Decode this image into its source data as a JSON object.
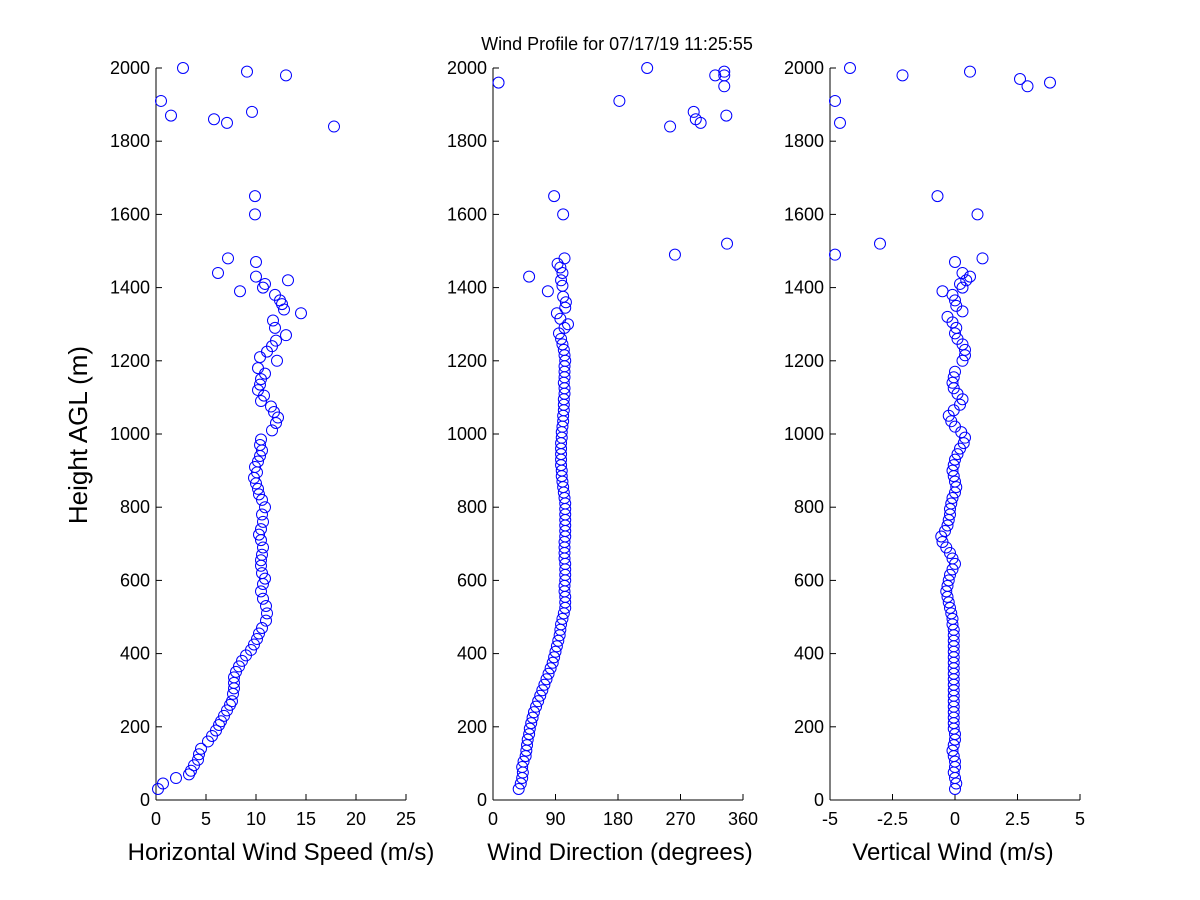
{
  "title": "Wind Profile for  07/17/19 11:25:55",
  "ylabel": "Height AGL (m)",
  "colors": {
    "marker": "#0000ff",
    "axis": "#000000",
    "background": "#ffffff"
  },
  "chart_data": [
    {
      "type": "scatter",
      "xlabel": "Horizontal Wind Speed (m/s)",
      "ylabel": "Height AGL (m)",
      "xlim": [
        0,
        25
      ],
      "ylim": [
        0,
        2000
      ],
      "xticks": [
        0,
        5,
        10,
        15,
        20,
        25
      ],
      "xtick_labels": [
        "0",
        "5",
        "10",
        "15",
        "20",
        "25"
      ],
      "yticks": [
        0,
        200,
        400,
        600,
        800,
        1000,
        1200,
        1400,
        1600,
        1800,
        2000
      ],
      "ytick_labels": [
        "0",
        "200",
        "400",
        "600",
        "800",
        "1000",
        "1200",
        "1400",
        "1600",
        "1800",
        "2000"
      ],
      "grid": false,
      "points": [
        [
          0.2,
          30
        ],
        [
          0.7,
          45
        ],
        [
          2,
          60
        ],
        [
          3.3,
          70
        ],
        [
          3.5,
          80
        ],
        [
          3.8,
          95
        ],
        [
          4.2,
          110
        ],
        [
          4.3,
          125
        ],
        [
          4.5,
          140
        ],
        [
          5.2,
          160
        ],
        [
          5.6,
          175
        ],
        [
          6,
          190
        ],
        [
          6.3,
          205
        ],
        [
          6.5,
          215
        ],
        [
          6.8,
          230
        ],
        [
          7.1,
          245
        ],
        [
          7.4,
          260
        ],
        [
          7.6,
          270
        ],
        [
          7.7,
          290
        ],
        [
          7.8,
          305
        ],
        [
          7.8,
          320
        ],
        [
          7.8,
          335
        ],
        [
          8.0,
          350
        ],
        [
          8.3,
          365
        ],
        [
          8.6,
          380
        ],
        [
          9.0,
          395
        ],
        [
          9.5,
          410
        ],
        [
          9.8,
          425
        ],
        [
          10.1,
          440
        ],
        [
          10.3,
          455
        ],
        [
          10.6,
          470
        ],
        [
          11.0,
          490
        ],
        [
          11.1,
          510
        ],
        [
          11.0,
          530
        ],
        [
          10.7,
          550
        ],
        [
          10.5,
          570
        ],
        [
          10.7,
          590
        ],
        [
          10.9,
          605
        ],
        [
          10.6,
          620
        ],
        [
          10.5,
          640
        ],
        [
          10.5,
          655
        ],
        [
          10.6,
          670
        ],
        [
          10.7,
          690
        ],
        [
          10.5,
          710
        ],
        [
          10.3,
          725
        ],
        [
          10.5,
          740
        ],
        [
          10.7,
          760
        ],
        [
          10.6,
          780
        ],
        [
          10.9,
          800
        ],
        [
          10.6,
          820
        ],
        [
          10.3,
          835
        ],
        [
          10.2,
          850
        ],
        [
          10.0,
          865
        ],
        [
          9.8,
          880
        ],
        [
          10.1,
          895
        ],
        [
          9.9,
          910
        ],
        [
          10.2,
          925
        ],
        [
          10.4,
          940
        ],
        [
          10.6,
          955
        ],
        [
          10.4,
          970
        ],
        [
          10.5,
          985
        ],
        [
          11.6,
          1010
        ],
        [
          12.0,
          1030
        ],
        [
          12.2,
          1045
        ],
        [
          11.8,
          1060
        ],
        [
          11.5,
          1075
        ],
        [
          10.5,
          1090
        ],
        [
          10.8,
          1105
        ],
        [
          10.2,
          1120
        ],
        [
          10.4,
          1135
        ],
        [
          10.5,
          1150
        ],
        [
          10.9,
          1165
        ],
        [
          10.2,
          1180
        ],
        [
          12.1,
          1200
        ],
        [
          10.4,
          1210
        ],
        [
          11.1,
          1225
        ],
        [
          11.6,
          1240
        ],
        [
          12.0,
          1255
        ],
        [
          13.0,
          1270
        ],
        [
          11.9,
          1290
        ],
        [
          11.7,
          1310
        ],
        [
          14.5,
          1330
        ],
        [
          12.8,
          1340
        ],
        [
          12.6,
          1355
        ],
        [
          12.4,
          1365
        ],
        [
          11.9,
          1380
        ],
        [
          8.4,
          1390
        ],
        [
          10.7,
          1400
        ],
        [
          10.9,
          1410
        ],
        [
          13.2,
          1420
        ],
        [
          10.0,
          1430
        ],
        [
          6.2,
          1440
        ],
        [
          10.0,
          1470
        ],
        [
          7.2,
          1480
        ],
        [
          9.9,
          1600
        ],
        [
          9.9,
          1650
        ],
        [
          17.8,
          1840
        ],
        [
          7.1,
          1850
        ],
        [
          5.8,
          1860
        ],
        [
          1.5,
          1870
        ],
        [
          9.6,
          1880
        ],
        [
          0.5,
          1910
        ],
        [
          13.0,
          1980
        ],
        [
          9.1,
          1990
        ],
        [
          2.7,
          2000
        ]
      ]
    },
    {
      "type": "scatter",
      "xlabel": "Wind Direction (degrees)",
      "xlim": [
        0,
        360
      ],
      "ylim": [
        0,
        2000
      ],
      "xticks": [
        0,
        90,
        180,
        270,
        360
      ],
      "xtick_labels": [
        "0",
        "90",
        "180",
        "270",
        "360"
      ],
      "yticks": [
        0,
        200,
        400,
        600,
        800,
        1000,
        1200,
        1400,
        1600,
        1800,
        2000
      ],
      "ytick_labels": [
        "0",
        "200",
        "400",
        "600",
        "800",
        "1000",
        "1200",
        "1400",
        "1600",
        "1800",
        "2000"
      ],
      "grid": false,
      "points": [
        [
          37,
          30
        ],
        [
          40,
          45
        ],
        [
          42,
          60
        ],
        [
          43,
          75
        ],
        [
          42,
          90
        ],
        [
          44,
          105
        ],
        [
          47,
          120
        ],
        [
          48,
          135
        ],
        [
          49,
          150
        ],
        [
          50,
          165
        ],
        [
          52,
          180
        ],
        [
          53,
          195
        ],
        [
          55,
          210
        ],
        [
          57,
          225
        ],
        [
          59,
          240
        ],
        [
          62,
          255
        ],
        [
          65,
          270
        ],
        [
          68,
          285
        ],
        [
          71,
          300
        ],
        [
          74,
          315
        ],
        [
          77,
          330
        ],
        [
          80,
          345
        ],
        [
          83,
          360
        ],
        [
          86,
          375
        ],
        [
          88,
          390
        ],
        [
          90,
          405
        ],
        [
          92,
          420
        ],
        [
          94,
          435
        ],
        [
          96,
          450
        ],
        [
          97,
          465
        ],
        [
          98,
          480
        ],
        [
          100,
          495
        ],
        [
          102,
          510
        ],
        [
          104,
          525
        ],
        [
          104,
          540
        ],
        [
          104,
          555
        ],
        [
          103,
          570
        ],
        [
          103,
          585
        ],
        [
          104,
          600
        ],
        [
          104,
          615
        ],
        [
          104,
          630
        ],
        [
          104,
          645
        ],
        [
          103,
          660
        ],
        [
          103,
          675
        ],
        [
          103,
          690
        ],
        [
          103,
          705
        ],
        [
          104,
          720
        ],
        [
          104,
          735
        ],
        [
          104,
          750
        ],
        [
          104,
          765
        ],
        [
          104,
          780
        ],
        [
          104,
          795
        ],
        [
          104,
          810
        ],
        [
          103,
          825
        ],
        [
          102,
          840
        ],
        [
          101,
          855
        ],
        [
          100,
          870
        ],
        [
          99,
          885
        ],
        [
          99,
          900
        ],
        [
          98,
          915
        ],
        [
          98,
          930
        ],
        [
          98,
          945
        ],
        [
          98,
          960
        ],
        [
          98,
          975
        ],
        [
          99,
          990
        ],
        [
          99,
          1005
        ],
        [
          100,
          1020
        ],
        [
          101,
          1035
        ],
        [
          101,
          1050
        ],
        [
          102,
          1065
        ],
        [
          102,
          1080
        ],
        [
          102,
          1095
        ],
        [
          103,
          1110
        ],
        [
          103,
          1125
        ],
        [
          102,
          1140
        ],
        [
          103,
          1155
        ],
        [
          103,
          1170
        ],
        [
          103,
          1185
        ],
        [
          104,
          1200
        ],
        [
          103,
          1215
        ],
        [
          102,
          1230
        ],
        [
          100,
          1245
        ],
        [
          98,
          1260
        ],
        [
          95,
          1275
        ],
        [
          103,
          1290
        ],
        [
          108,
          1300
        ],
        [
          97,
          1315
        ],
        [
          92,
          1330
        ],
        [
          104,
          1345
        ],
        [
          105,
          1360
        ],
        [
          101,
          1375
        ],
        [
          79,
          1390
        ],
        [
          100,
          1405
        ],
        [
          98,
          1420
        ],
        [
          52,
          1430
        ],
        [
          100,
          1440
        ],
        [
          97,
          1455
        ],
        [
          93,
          1465
        ],
        [
          103,
          1480
        ],
        [
          262,
          1490
        ],
        [
          337,
          1520
        ],
        [
          101,
          1600
        ],
        [
          88,
          1650
        ],
        [
          255,
          1840
        ],
        [
          299,
          1850
        ],
        [
          292,
          1860
        ],
        [
          336,
          1870
        ],
        [
          289,
          1880
        ],
        [
          182,
          1910
        ],
        [
          8,
          1960
        ],
        [
          320,
          1980
        ],
        [
          333,
          1980
        ],
        [
          333,
          1990
        ],
        [
          222,
          2000
        ],
        [
          333,
          1950
        ]
      ]
    },
    {
      "type": "scatter",
      "xlabel": "Vertical Wind (m/s)",
      "xlim": [
        -5,
        5
      ],
      "ylim": [
        0,
        2000
      ],
      "xticks": [
        -5,
        -2.5,
        0,
        2.5,
        5
      ],
      "xtick_labels": [
        "-5",
        "-2.5",
        "0",
        "2.5",
        "5"
      ],
      "yticks": [
        0,
        200,
        400,
        600,
        800,
        1000,
        1200,
        1400,
        1600,
        1800,
        2000
      ],
      "ytick_labels": [
        "0",
        "200",
        "400",
        "600",
        "800",
        "1000",
        "1200",
        "1400",
        "1600",
        "1800",
        "2000"
      ],
      "grid": false,
      "points": [
        [
          0.0,
          30
        ],
        [
          0.05,
          45
        ],
        [
          0.0,
          60
        ],
        [
          -0.05,
          75
        ],
        [
          0.0,
          90
        ],
        [
          0.0,
          105
        ],
        [
          -0.05,
          120
        ],
        [
          -0.1,
          135
        ],
        [
          -0.05,
          150
        ],
        [
          0.0,
          165
        ],
        [
          0.0,
          180
        ],
        [
          -0.05,
          195
        ],
        [
          -0.05,
          210
        ],
        [
          -0.05,
          225
        ],
        [
          -0.05,
          240
        ],
        [
          -0.05,
          255
        ],
        [
          -0.05,
          270
        ],
        [
          -0.05,
          285
        ],
        [
          -0.05,
          300
        ],
        [
          -0.05,
          315
        ],
        [
          -0.05,
          330
        ],
        [
          -0.05,
          345
        ],
        [
          -0.05,
          360
        ],
        [
          -0.05,
          375
        ],
        [
          -0.05,
          390
        ],
        [
          -0.05,
          405
        ],
        [
          -0.05,
          420
        ],
        [
          -0.05,
          435
        ],
        [
          -0.05,
          450
        ],
        [
          -0.05,
          465
        ],
        [
          -0.1,
          480
        ],
        [
          -0.1,
          495
        ],
        [
          -0.15,
          510
        ],
        [
          -0.2,
          525
        ],
        [
          -0.25,
          540
        ],
        [
          -0.3,
          555
        ],
        [
          -0.35,
          570
        ],
        [
          -0.3,
          585
        ],
        [
          -0.25,
          600
        ],
        [
          -0.2,
          615
        ],
        [
          -0.1,
          630
        ],
        [
          0.0,
          645
        ],
        [
          -0.1,
          660
        ],
        [
          -0.2,
          675
        ],
        [
          -0.35,
          690
        ],
        [
          -0.5,
          705
        ],
        [
          -0.55,
          720
        ],
        [
          -0.4,
          735
        ],
        [
          -0.3,
          750
        ],
        [
          -0.25,
          765
        ],
        [
          -0.2,
          780
        ],
        [
          -0.2,
          795
        ],
        [
          -0.15,
          810
        ],
        [
          -0.1,
          825
        ],
        [
          0.0,
          840
        ],
        [
          0.05,
          855
        ],
        [
          0.0,
          870
        ],
        [
          -0.05,
          885
        ],
        [
          -0.1,
          900
        ],
        [
          -0.05,
          915
        ],
        [
          0.0,
          930
        ],
        [
          0.1,
          945
        ],
        [
          0.2,
          960
        ],
        [
          0.35,
          975
        ],
        [
          0.4,
          990
        ],
        [
          0.25,
          1005
        ],
        [
          0.0,
          1020
        ],
        [
          -0.15,
          1035
        ],
        [
          -0.25,
          1050
        ],
        [
          -0.05,
          1065
        ],
        [
          0.2,
          1080
        ],
        [
          0.3,
          1095
        ],
        [
          0.1,
          1110
        ],
        [
          -0.05,
          1125
        ],
        [
          -0.1,
          1140
        ],
        [
          -0.05,
          1155
        ],
        [
          0.0,
          1170
        ],
        [
          0.3,
          1200
        ],
        [
          0.4,
          1215
        ],
        [
          0.4,
          1230
        ],
        [
          0.3,
          1245
        ],
        [
          0.1,
          1260
        ],
        [
          0.0,
          1275
        ],
        [
          0.05,
          1290
        ],
        [
          -0.1,
          1305
        ],
        [
          -0.3,
          1320
        ],
        [
          0.3,
          1335
        ],
        [
          0.05,
          1350
        ],
        [
          0.0,
          1365
        ],
        [
          -0.1,
          1380
        ],
        [
          -0.5,
          1390
        ],
        [
          0.3,
          1400
        ],
        [
          0.2,
          1410
        ],
        [
          0.45,
          1420
        ],
        [
          0.6,
          1430
        ],
        [
          0.3,
          1440
        ],
        [
          0.0,
          1470
        ],
        [
          1.1,
          1480
        ],
        [
          -4.8,
          1490
        ],
        [
          -3.0,
          1520
        ],
        [
          0.9,
          1600
        ],
        [
          -0.7,
          1650
        ],
        [
          -4.6,
          1850
        ],
        [
          -4.8,
          1910
        ],
        [
          3.8,
          1960
        ],
        [
          2.6,
          1970
        ],
        [
          2.9,
          1950
        ],
        [
          -2.1,
          1980
        ],
        [
          0.6,
          1990
        ],
        [
          -4.2,
          2000
        ]
      ]
    }
  ]
}
